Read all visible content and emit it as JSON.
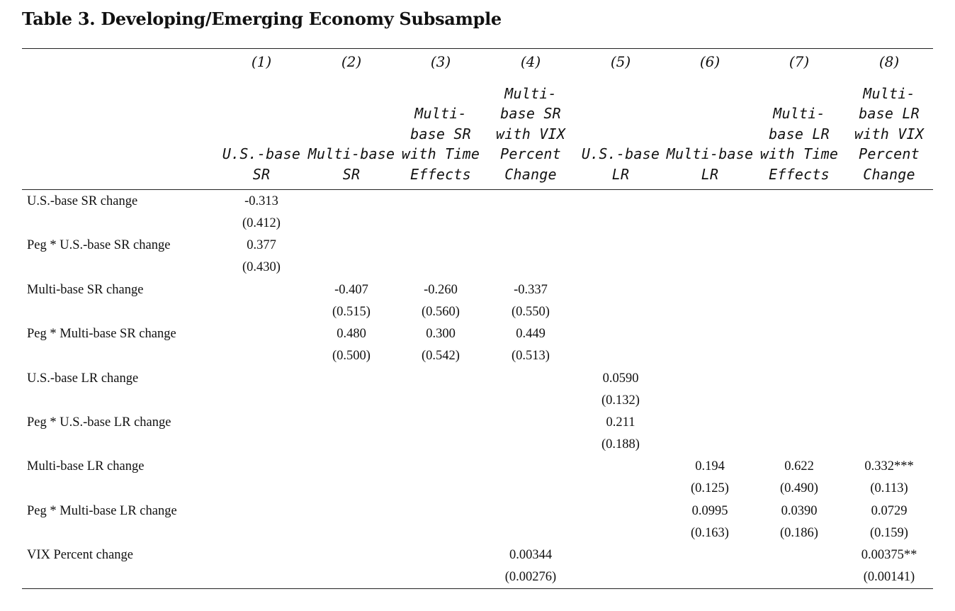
{
  "title": "Table 3. Developing/Emerging Economy Subsample",
  "columns": [
    {
      "num": "(1)",
      "head": "U.S.-base\nSR"
    },
    {
      "num": "(2)",
      "head": "Multi-base\nSR"
    },
    {
      "num": "(3)",
      "head": "Multi-\nbase SR\nwith Time\nEffects"
    },
    {
      "num": "(4)",
      "head": "Multi-\nbase SR\nwith VIX\nPercent\nChange"
    },
    {
      "num": "(5)",
      "head": "U.S.-base\nLR"
    },
    {
      "num": "(6)",
      "head": "Multi-base\nLR"
    },
    {
      "num": "(7)",
      "head": "Multi-\nbase LR\nwith Time\nEffects"
    },
    {
      "num": "(8)",
      "head": "Multi-\nbase LR\nwith VIX\nPercent\nChange"
    }
  ],
  "rows": [
    {
      "label": "U.S.-base SR change",
      "coef": [
        "-0.313",
        "",
        "",
        "",
        "",
        "",
        "",
        ""
      ],
      "se": [
        "(0.412)",
        "",
        "",
        "",
        "",
        "",
        "",
        ""
      ]
    },
    {
      "label": "Peg * U.S.-base SR change",
      "coef": [
        "0.377",
        "",
        "",
        "",
        "",
        "",
        "",
        ""
      ],
      "se": [
        "(0.430)",
        "",
        "",
        "",
        "",
        "",
        "",
        ""
      ]
    },
    {
      "label": "Multi-base SR change",
      "coef": [
        "",
        "-0.407",
        "-0.260",
        "-0.337",
        "",
        "",
        "",
        ""
      ],
      "se": [
        "",
        "(0.515)",
        "(0.560)",
        "(0.550)",
        "",
        "",
        "",
        ""
      ]
    },
    {
      "label": "Peg * Multi-base SR change",
      "coef": [
        "",
        "0.480",
        "0.300",
        "0.449",
        "",
        "",
        "",
        ""
      ],
      "se": [
        "",
        "(0.500)",
        "(0.542)",
        "(0.513)",
        "",
        "",
        "",
        ""
      ]
    },
    {
      "label": "U.S.-base LR change",
      "coef": [
        "",
        "",
        "",
        "",
        "0.0590",
        "",
        "",
        ""
      ],
      "se": [
        "",
        "",
        "",
        "",
        "(0.132)",
        "",
        "",
        ""
      ]
    },
    {
      "label": "Peg * U.S.-base LR change",
      "coef": [
        "",
        "",
        "",
        "",
        "0.211",
        "",
        "",
        ""
      ],
      "se": [
        "",
        "",
        "",
        "",
        "(0.188)",
        "",
        "",
        ""
      ]
    },
    {
      "label": "Multi-base LR change",
      "coef": [
        "",
        "",
        "",
        "",
        "",
        "0.194",
        "0.622",
        "0.332***"
      ],
      "se": [
        "",
        "",
        "",
        "",
        "",
        "(0.125)",
        "(0.490)",
        "(0.113)"
      ]
    },
    {
      "label": "Peg * Multi-base LR change",
      "coef": [
        "",
        "",
        "",
        "",
        "",
        "0.0995",
        "0.0390",
        "0.0729"
      ],
      "se": [
        "",
        "",
        "",
        "",
        "",
        "(0.163)",
        "(0.186)",
        "(0.159)"
      ]
    },
    {
      "label": "VIX Percent change",
      "coef": [
        "",
        "",
        "",
        "0.00344",
        "",
        "",
        "",
        "0.00375**"
      ],
      "se": [
        "",
        "",
        "",
        "(0.00276)",
        "",
        "",
        "",
        "(0.00141)"
      ]
    }
  ]
}
